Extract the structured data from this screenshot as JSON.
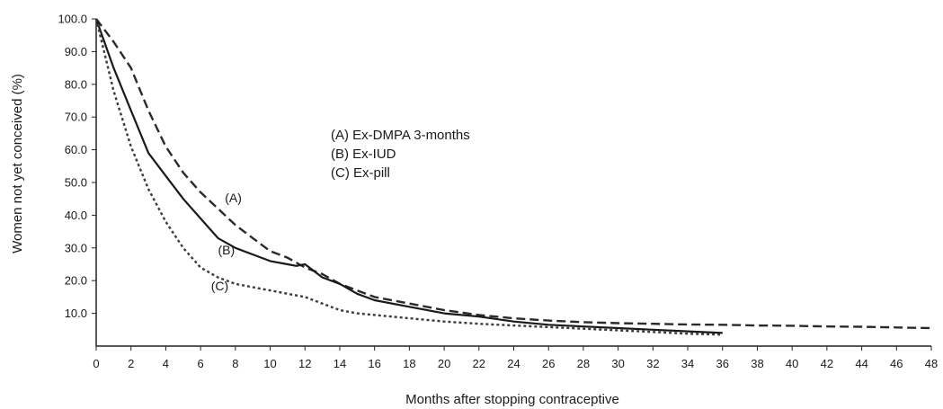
{
  "chart_data": {
    "type": "line",
    "title": "",
    "xlabel": "Months after stopping contraceptive",
    "ylabel": "Women not yet conceived (%)",
    "xlim": [
      0,
      48
    ],
    "ylim": [
      0,
      100
    ],
    "x_ticks": [
      "0",
      "2",
      "4",
      "6",
      "8",
      "10",
      "12",
      "14",
      "16",
      "18",
      "20",
      "22",
      "24",
      "26",
      "28",
      "30",
      "32",
      "34",
      "36",
      "38",
      "40",
      "42",
      "44",
      "46",
      "48"
    ],
    "y_ticks": [
      "10.0",
      "20.0",
      "30.0",
      "40.0",
      "50.0",
      "60.0",
      "70.0",
      "80.0",
      "90.0",
      "100.0"
    ],
    "grid": false,
    "legend": {
      "position": "center",
      "entries": [
        "(A)  Ex-DMPA 3-months",
        "(B)  Ex-IUD",
        "(C)  Ex-pill"
      ]
    },
    "series": [
      {
        "name": "(A)",
        "style": "dashed",
        "x": [
          0,
          1,
          2,
          3,
          4,
          5,
          6,
          7,
          8,
          9,
          10,
          11,
          12,
          13,
          14,
          15,
          16,
          18,
          20,
          22,
          24,
          26,
          28,
          30,
          32,
          34,
          36,
          38,
          40,
          42,
          44,
          46,
          48
        ],
        "y": [
          100,
          93,
          85,
          72,
          61,
          53,
          47,
          42,
          37,
          33,
          29,
          27,
          24,
          22,
          19,
          17,
          15,
          13,
          11,
          9.5,
          8.5,
          7.8,
          7.3,
          7,
          6.8,
          6.6,
          6.5,
          6.3,
          6.2,
          6,
          5.9,
          5.7,
          5.5
        ]
      },
      {
        "name": "(B)",
        "style": "solid",
        "x": [
          0,
          1,
          2,
          3,
          4,
          5,
          6,
          7,
          8,
          9,
          10,
          11,
          11.5,
          12,
          13,
          14,
          15,
          16,
          18,
          20,
          22,
          24,
          26,
          28,
          30,
          32,
          34,
          36
        ],
        "y": [
          100,
          85,
          72,
          59,
          52,
          45,
          39,
          33,
          30,
          28,
          26,
          25,
          24.5,
          25,
          21,
          19,
          16,
          14,
          12,
          10,
          9,
          7.5,
          6.5,
          6,
          5.5,
          5,
          4.5,
          4
        ]
      },
      {
        "name": "(C)",
        "style": "dotted",
        "x": [
          0,
          1,
          2,
          3,
          4,
          5,
          6,
          7,
          8,
          9,
          10,
          11,
          12,
          13,
          14,
          15,
          16,
          18,
          20,
          22,
          24,
          26,
          28,
          30,
          32,
          34,
          36
        ],
        "y": [
          100,
          78,
          61,
          48,
          38,
          30,
          24,
          21,
          19,
          18,
          17,
          16,
          15,
          13,
          11,
          10,
          9.5,
          8.5,
          7.5,
          6.8,
          6.3,
          5.8,
          5.3,
          4.8,
          4.3,
          3.8,
          3.5
        ]
      }
    ],
    "curve_labels": [
      {
        "text": "(A)",
        "x": 7.4,
        "y": 44
      },
      {
        "text": "(B)",
        "x": 7,
        "y": 28
      },
      {
        "text": "(C)",
        "x": 6.6,
        "y": 17
      }
    ]
  }
}
